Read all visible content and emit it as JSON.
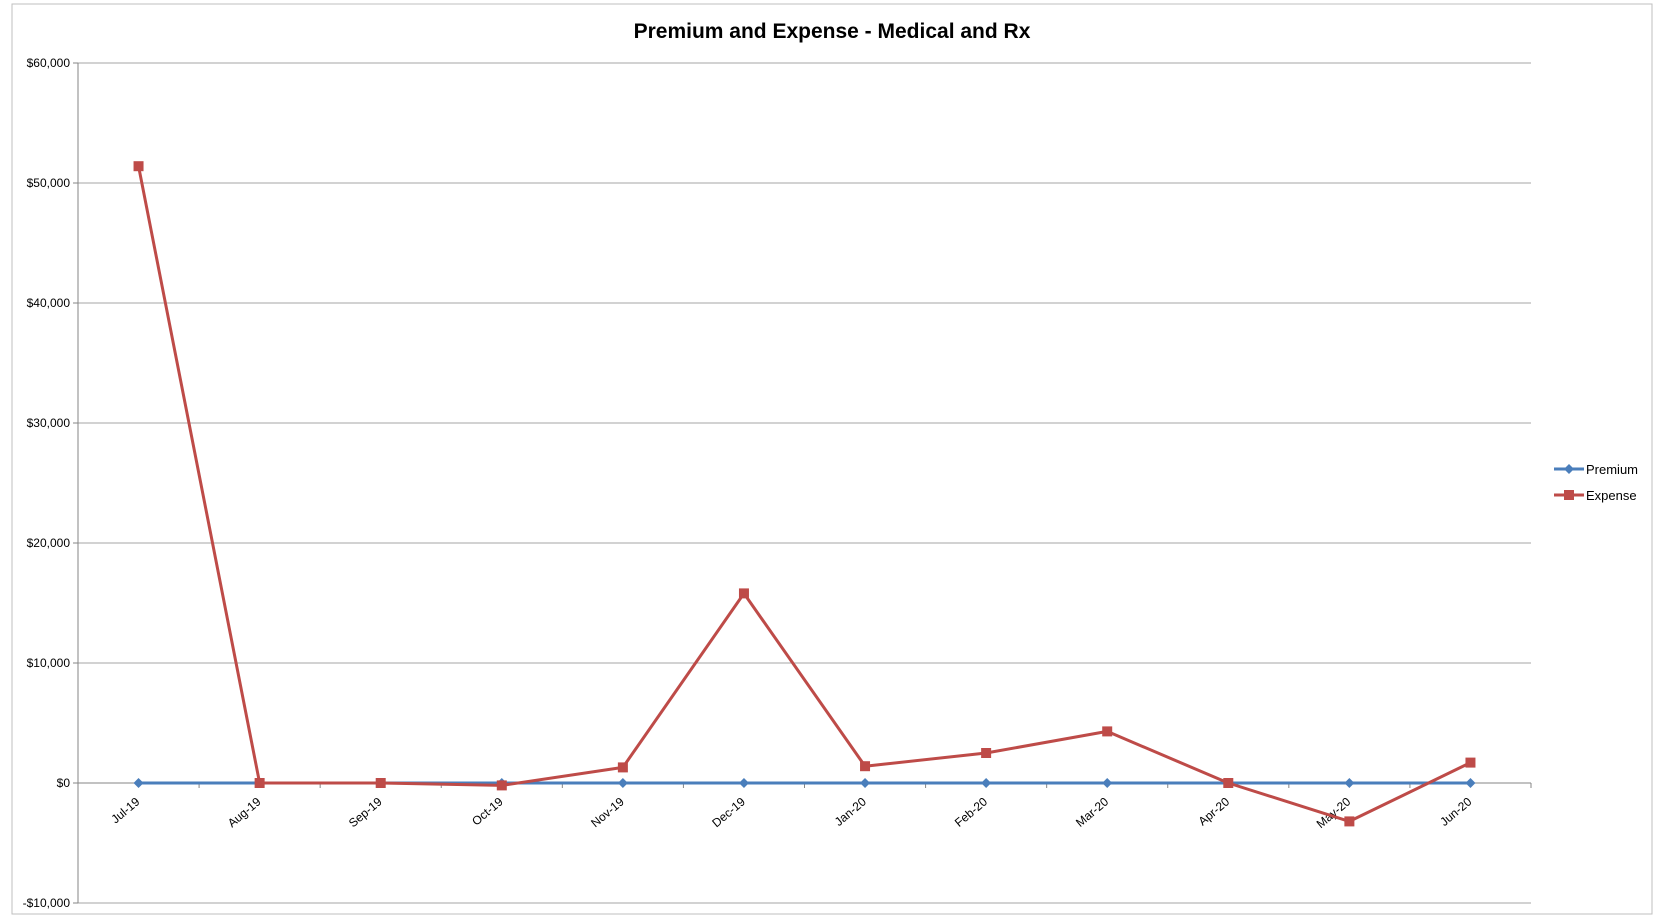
{
  "chart_data": {
    "type": "line",
    "title": "Premium and Expense - Medical and Rx",
    "categories": [
      "Jul-19",
      "Aug-19",
      "Sep-19",
      "Oct-19",
      "Nov-19",
      "Dec-19",
      "Jan-20",
      "Feb-20",
      "Mar-20",
      "Apr-20",
      "May-20",
      "Jun-20"
    ],
    "series": [
      {
        "name": "Premium",
        "color": "#4a7ebb",
        "marker": "diamond",
        "values": [
          0,
          0,
          0,
          0,
          0,
          0,
          0,
          0,
          0,
          0,
          0,
          0
        ]
      },
      {
        "name": "Expense",
        "color": "#be4b48",
        "marker": "square",
        "values": [
          51400,
          0,
          0,
          -200,
          1300,
          15800,
          1400,
          2500,
          4300,
          0,
          -3200,
          1700
        ]
      }
    ],
    "ylim": [
      -10000,
      60000
    ],
    "yticks": [
      60000,
      50000,
      40000,
      30000,
      20000,
      10000,
      0,
      -10000
    ],
    "ytick_labels": [
      "$60,000",
      "$50,000",
      "$40,000",
      "$30,000",
      "$20,000",
      "$10,000",
      "$0",
      "-$10,000"
    ],
    "grid": true,
    "legend": "right"
  }
}
